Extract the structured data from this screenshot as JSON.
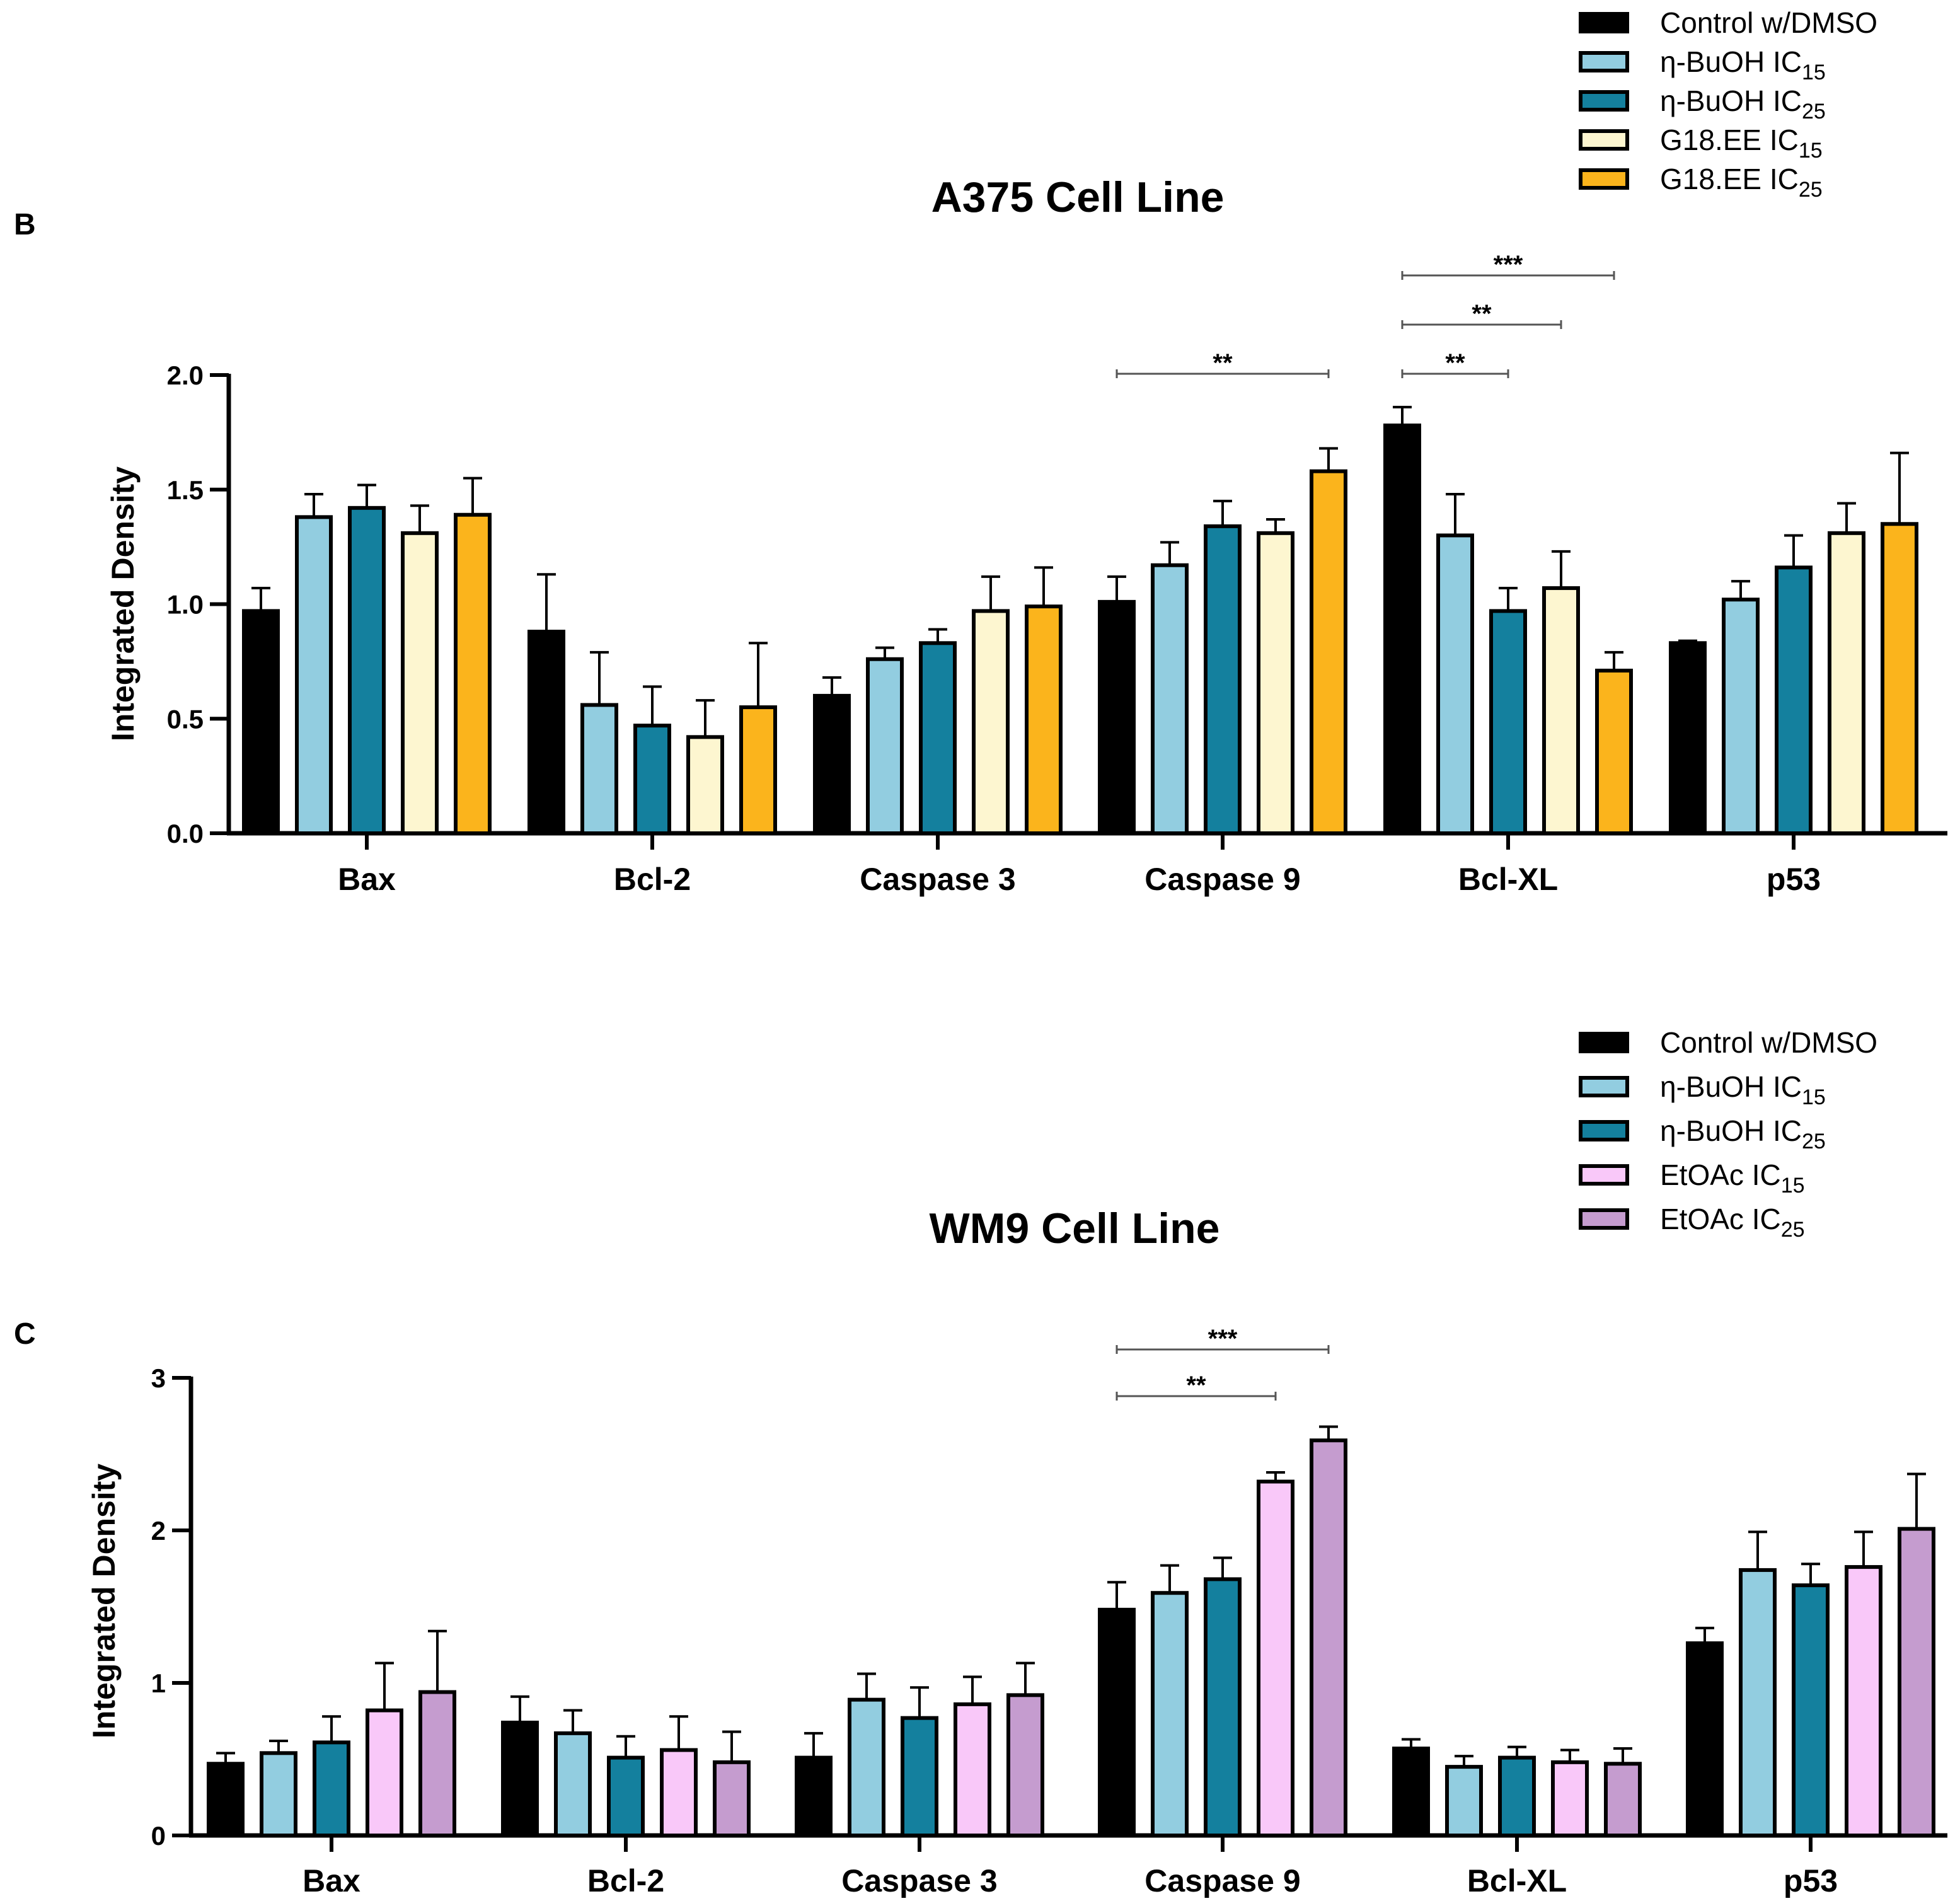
{
  "chart_data": [
    {
      "type": "bar",
      "panel_letter": "B",
      "title": "A375 Cell Line",
      "xlabel": "",
      "ylabel": "Integrated Density",
      "ylim": [
        0,
        2.0
      ],
      "yticks": [
        "0.0",
        "0.5",
        "1.0",
        "1.5",
        "2.0"
      ],
      "ytick_values": [
        0,
        0.5,
        1.0,
        1.5,
        2.0
      ],
      "categories": [
        "Bax",
        "Bcl-2",
        "Caspase 3",
        "Caspase 9",
        "Bcl-XL",
        "p53"
      ],
      "legend_position": "top-right",
      "series": [
        {
          "name": "Control  w/DMSO",
          "label_main": "Control  w/DMSO",
          "label_sub": "",
          "color": "#000000",
          "values": [
            0.97,
            0.88,
            0.6,
            1.01,
            1.78,
            0.83
          ],
          "errors": [
            0.1,
            0.25,
            0.08,
            0.11,
            0.08,
            0.01
          ]
        },
        {
          "name": "n-BuOH IC15",
          "label_main": "η-BuOH IC",
          "label_sub": "15",
          "color": "#92cde0",
          "values": [
            1.38,
            0.56,
            0.76,
            1.17,
            1.3,
            1.02
          ],
          "errors": [
            0.1,
            0.23,
            0.05,
            0.1,
            0.18,
            0.08
          ]
        },
        {
          "name": "n-BuOH IC25",
          "label_main": "η-BuOH IC",
          "label_sub": "25",
          "color": "#14809e",
          "values": [
            1.42,
            0.47,
            0.83,
            1.34,
            0.97,
            1.16
          ],
          "errors": [
            0.1,
            0.17,
            0.06,
            0.11,
            0.1,
            0.14
          ]
        },
        {
          "name": "G18.EE IC15",
          "label_main": "G18.EE IC",
          "label_sub": "15",
          "color": "#fdf6d0",
          "values": [
            1.31,
            0.42,
            0.97,
            1.31,
            1.07,
            1.31
          ],
          "errors": [
            0.12,
            0.16,
            0.15,
            0.06,
            0.16,
            0.13
          ]
        },
        {
          "name": "G18.EE IC25",
          "label_main": "G18.EE IC",
          "label_sub": "25",
          "color": "#fbb41c",
          "values": [
            1.39,
            0.55,
            0.99,
            1.58,
            0.71,
            1.35
          ],
          "errors": [
            0.16,
            0.28,
            0.17,
            0.1,
            0.08,
            0.31
          ]
        }
      ],
      "significance": [
        {
          "label": "**",
          "category": "Caspase 9",
          "from_series": 0,
          "to_series": 4,
          "level": 1
        },
        {
          "label": "**",
          "category": "Bcl-XL",
          "from_series": 0,
          "to_series": 2,
          "level": 1
        },
        {
          "label": "**",
          "category": "Bcl-XL",
          "from_series": 0,
          "to_series": 3,
          "level": 2
        },
        {
          "label": "***",
          "category": "Bcl-XL",
          "from_series": 0,
          "to_series": 4,
          "level": 3
        }
      ]
    },
    {
      "type": "bar",
      "panel_letter": "C",
      "title": "WM9 Cell Line",
      "xlabel": "",
      "ylabel": "Integrated Density",
      "ylim": [
        0,
        3
      ],
      "yticks": [
        "0",
        "1",
        "2",
        "3"
      ],
      "ytick_values": [
        0,
        1,
        2,
        3
      ],
      "categories": [
        "Bax",
        "Bcl-2",
        "Caspase 3",
        "Caspase 9",
        "Bcl-XL",
        "p53"
      ],
      "legend_position": "top-right",
      "series": [
        {
          "name": "Control  w/DMSO",
          "label_main": "Control  w/DMSO",
          "label_sub": "",
          "color": "#000000",
          "values": [
            0.47,
            0.74,
            0.51,
            1.48,
            0.57,
            1.26
          ],
          "errors": [
            0.07,
            0.17,
            0.16,
            0.18,
            0.06,
            0.1
          ]
        },
        {
          "name": "n-BuOH IC15",
          "label_main": "η-BuOH IC",
          "label_sub": "15",
          "color": "#92cde0",
          "values": [
            0.54,
            0.67,
            0.89,
            1.59,
            0.45,
            1.74
          ],
          "errors": [
            0.08,
            0.15,
            0.17,
            0.18,
            0.07,
            0.25
          ]
        },
        {
          "name": "n-BuOH IC25",
          "label_main": "η-BuOH IC",
          "label_sub": "25",
          "color": "#14809e",
          "values": [
            0.61,
            0.51,
            0.77,
            1.68,
            0.51,
            1.64
          ],
          "errors": [
            0.17,
            0.14,
            0.2,
            0.14,
            0.07,
            0.14
          ]
        },
        {
          "name": "EtOAc IC15",
          "label_main": "EtOAc IC",
          "label_sub": "15",
          "color": "#f9c8f9",
          "values": [
            0.82,
            0.56,
            0.86,
            2.32,
            0.48,
            1.76
          ],
          "errors": [
            0.31,
            0.22,
            0.18,
            0.06,
            0.08,
            0.23
          ]
        },
        {
          "name": "EtOAc IC25",
          "label_main": "EtOAc IC",
          "label_sub": "25",
          "color": "#c59ccf",
          "values": [
            0.94,
            0.48,
            0.92,
            2.59,
            0.47,
            2.01
          ],
          "errors": [
            0.4,
            0.2,
            0.21,
            0.09,
            0.1,
            0.36
          ]
        }
      ],
      "significance": [
        {
          "label": "**",
          "category": "Caspase 9",
          "from_series": 0,
          "to_series": 3,
          "level": 1
        },
        {
          "label": "***",
          "category": "Caspase 9",
          "from_series": 0,
          "to_series": 4,
          "level": 2
        }
      ]
    }
  ]
}
